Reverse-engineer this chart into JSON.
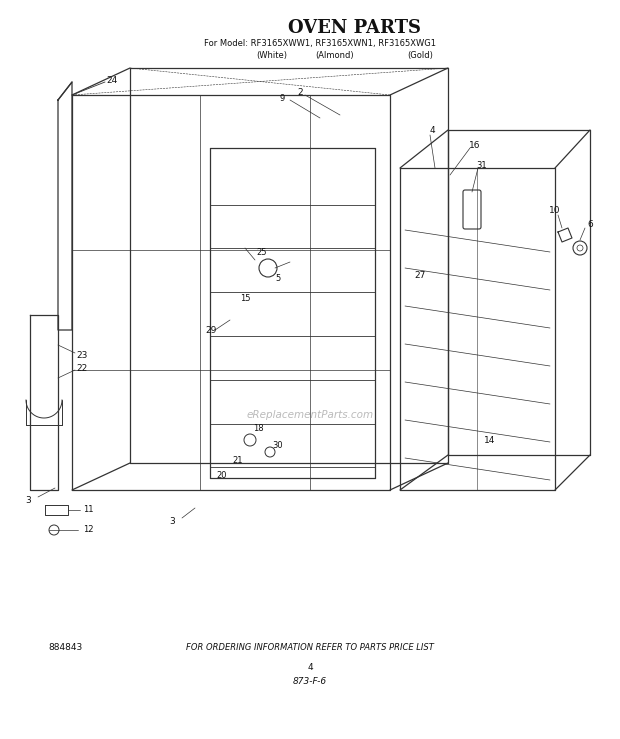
{
  "title": "OVEN PARTS",
  "model_line1": "For Model: RF3165XWW1, RF3165XWN1, RF3165XWG1",
  "model_white": "(White)",
  "model_almond": "(Almond)",
  "model_gold": "(Gold)",
  "bottom_left_id": "884843",
  "bottom_center": "FOR ORDERING INFORMATION REFER TO PARTS PRICE LIST",
  "bottom_page": "4",
  "bottom_code": "873-F-6",
  "watermark": "eReplacementParts.com",
  "bg_color": "#ffffff",
  "line_color": "#333333",
  "text_color": "#111111"
}
